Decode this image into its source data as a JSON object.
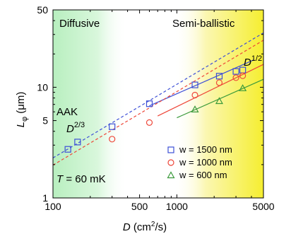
{
  "chart_data": {
    "type": "scatter",
    "x_scale": "log",
    "y_scale": "log",
    "xlim": [
      100,
      5000
    ],
    "ylim": [
      1,
      50
    ],
    "x_ticks": [
      100,
      500,
      1000,
      5000
    ],
    "y_ticks": [
      1,
      5,
      10,
      50
    ],
    "x_tick_labels": [
      "100",
      "500",
      "1000",
      "5000"
    ],
    "y_tick_labels": [
      "1",
      "5",
      "10",
      "50"
    ],
    "xlabel": {
      "italic": "D",
      "text": " (cm",
      "sup": "2",
      "tail": "/s)"
    },
    "ylabel": {
      "italic": "L",
      "sub": "φ",
      "text": " (μm)"
    },
    "regions": [
      {
        "label": "Diffusive",
        "from": 100,
        "to": 400,
        "color": "#b8efbf"
      },
      {
        "label": "Semi-ballistic",
        "from": 950,
        "to": 5000,
        "color": "#f5ee30"
      }
    ],
    "annotations": {
      "aak_line1": "AAK",
      "aak_italic": "D",
      "aak_sup": "2/3",
      "d_italic": "D",
      "d_sup": "1/2",
      "temp_italic": "T",
      "temp_text": " = 60 mK"
    },
    "series": [
      {
        "name": "w = 1500 nm",
        "marker": "square",
        "color": "#3d4fd6",
        "points": [
          [
            132,
            2.75
          ],
          [
            158,
            3.2
          ],
          [
            300,
            4.4
          ],
          [
            600,
            7.1
          ],
          [
            1400,
            10.5
          ],
          [
            2200,
            12.6
          ],
          [
            3000,
            13.9
          ],
          [
            3400,
            14.3
          ]
        ]
      },
      {
        "name": "w = 1000 nm",
        "marker": "circle",
        "color": "#ee4638",
        "points": [
          [
            300,
            3.4
          ],
          [
            600,
            4.8
          ],
          [
            1400,
            8.5
          ],
          [
            2200,
            11.0
          ],
          [
            3000,
            12.2
          ],
          [
            3400,
            12.7
          ]
        ]
      },
      {
        "name": "w = 600 nm",
        "marker": "triangle",
        "color": "#3c9a3c",
        "points": [
          [
            1400,
            6.3
          ],
          [
            2200,
            7.5
          ],
          [
            3400,
            9.8
          ]
        ]
      }
    ],
    "fit_lines": [
      {
        "series": 0,
        "style": "solid",
        "from": 600,
        "to": 4200,
        "y_at_from": 6.8,
        "y_at_to": 17.7
      },
      {
        "series": 0,
        "style": "dashed",
        "from": 100,
        "to": 5000,
        "y_at_from": 2.3,
        "y_at_to": 31.0
      },
      {
        "series": 1,
        "style": "solid",
        "from": 700,
        "to": 5000,
        "y_at_from": 5.5,
        "y_at_to": 16.1
      },
      {
        "series": 1,
        "style": "dashed",
        "from": 100,
        "to": 5000,
        "y_at_from": 1.98,
        "y_at_to": 26.6
      },
      {
        "series": 2,
        "style": "solid",
        "from": 1000,
        "to": 5000,
        "y_at_from": 5.3,
        "y_at_to": 11.8
      }
    ]
  }
}
